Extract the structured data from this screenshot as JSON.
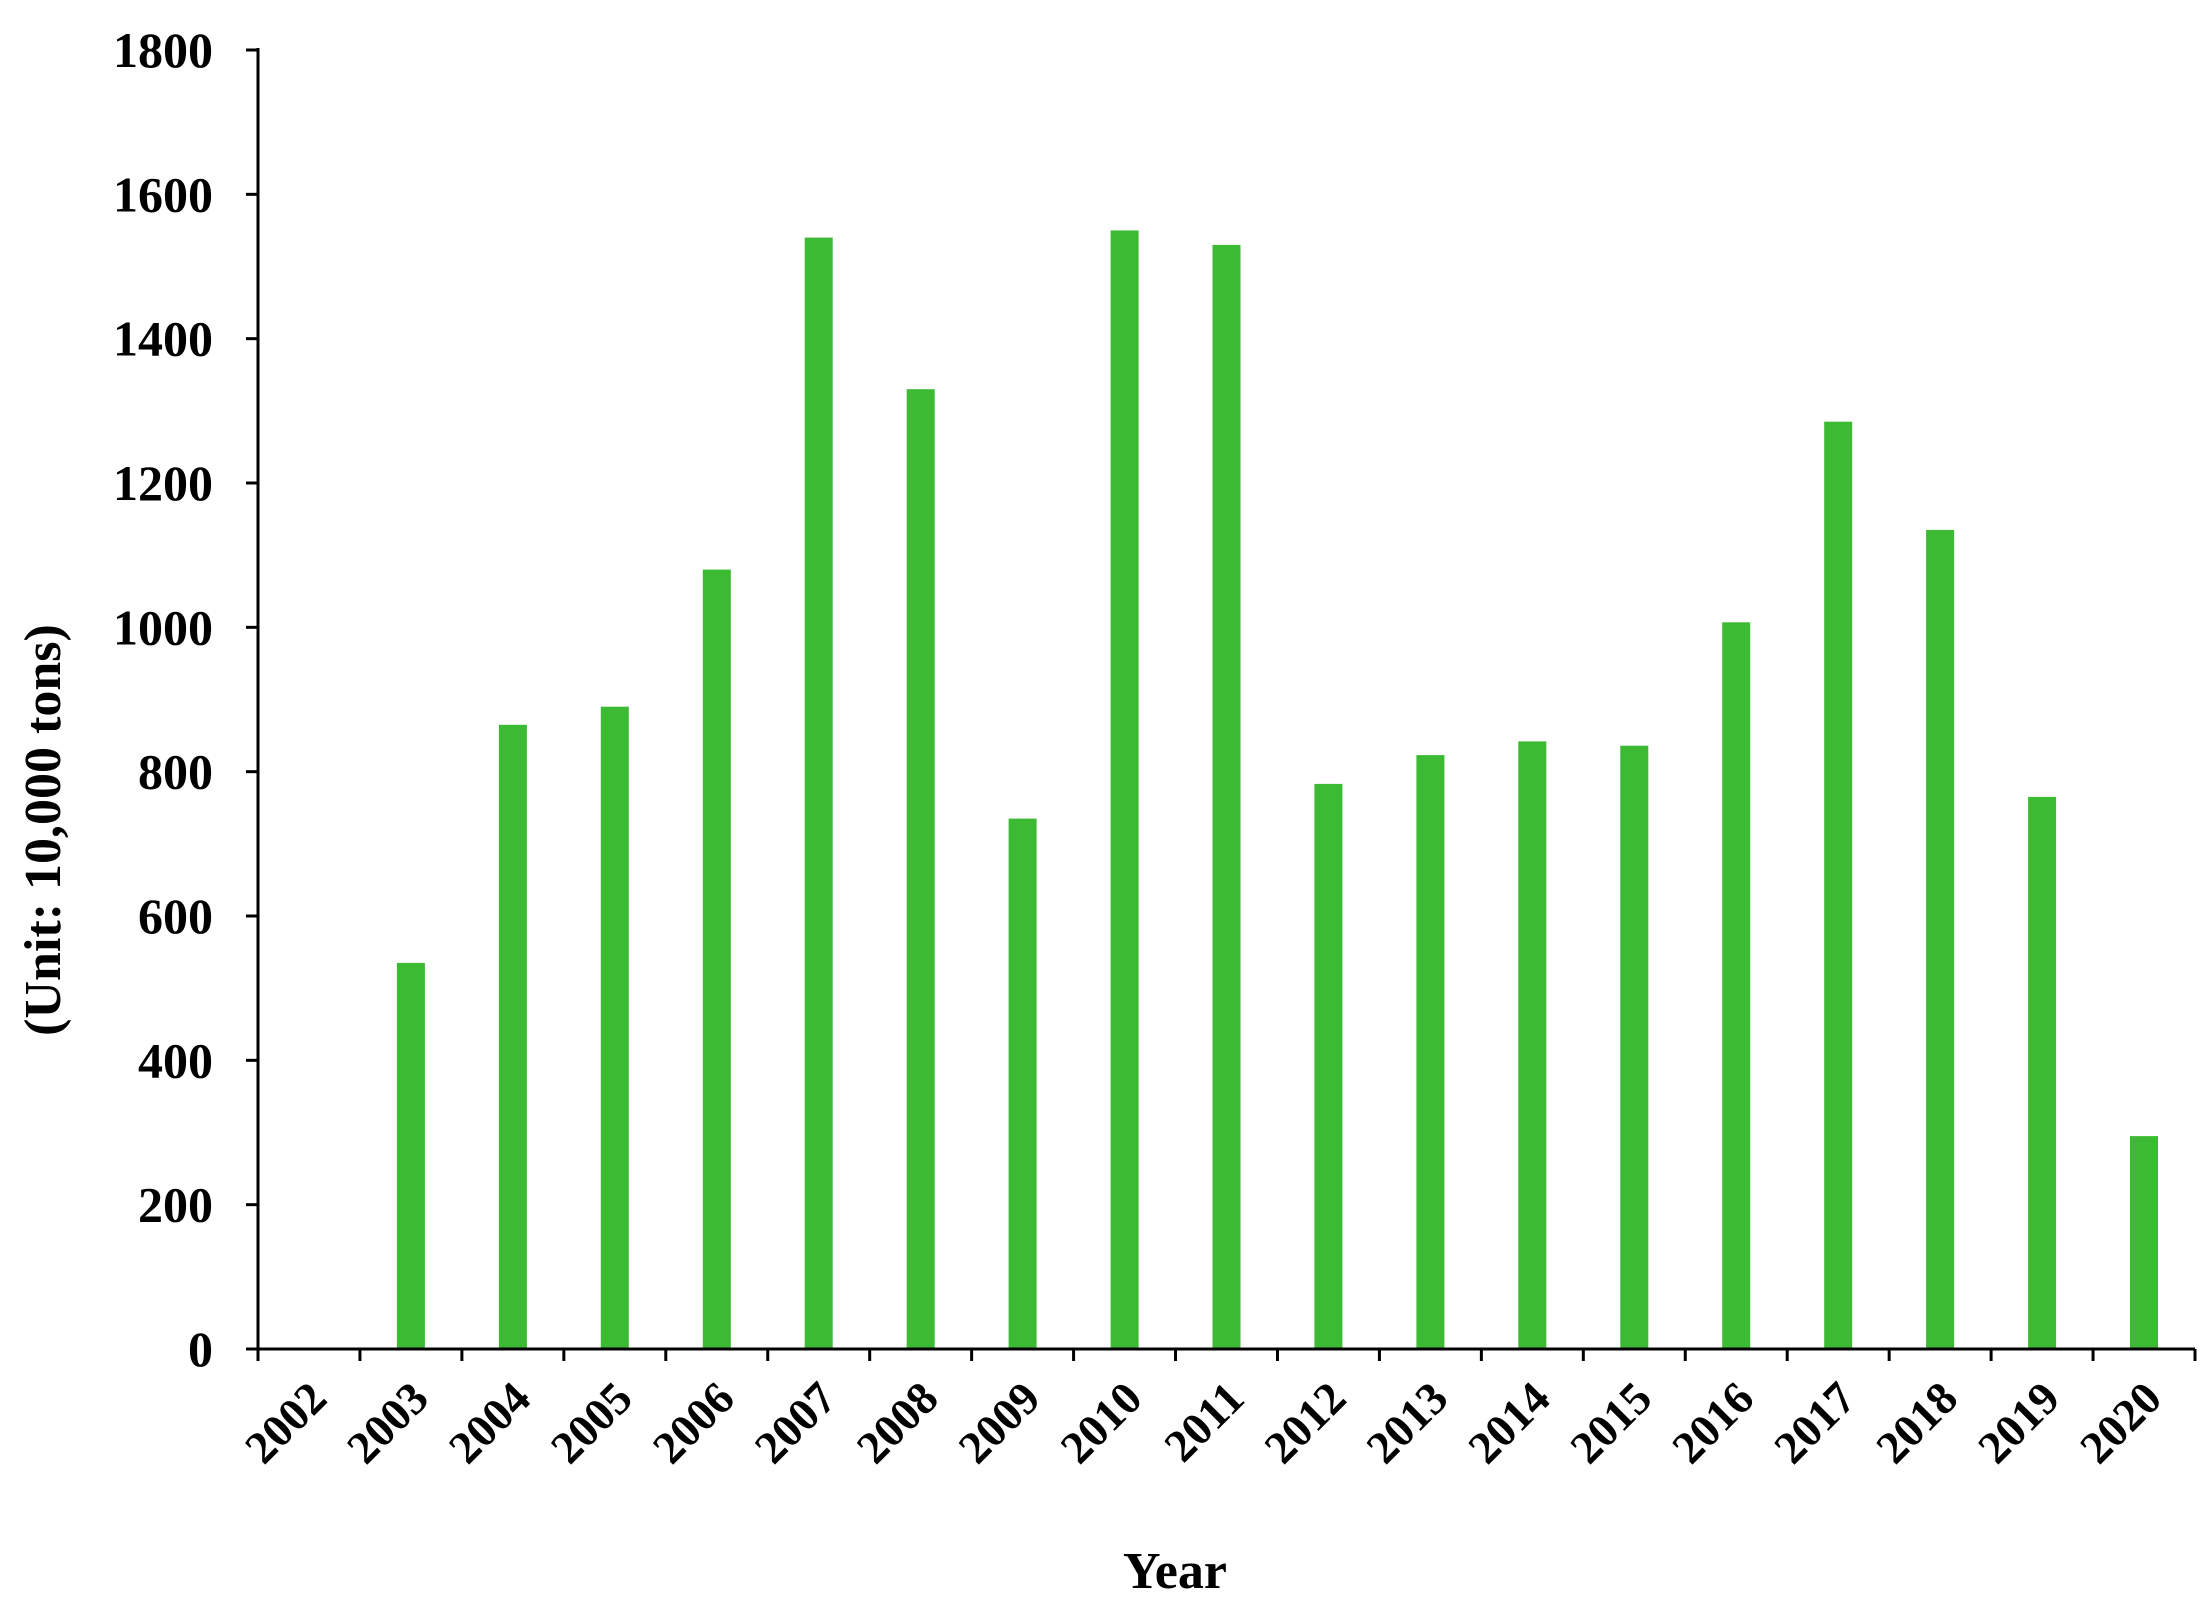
{
  "chart_data": {
    "type": "bar",
    "title": "",
    "xlabel": "Year",
    "ylabel": "(Unit: 10,000 tons)",
    "ylim": [
      0,
      1800
    ],
    "yticks": [
      "0",
      "200",
      "400",
      "600",
      "800",
      "1000",
      "1200",
      "1400",
      "1600",
      "1800"
    ],
    "grid": false,
    "legend": "none",
    "categories": [
      "2002",
      "2003",
      "2004",
      "2005",
      "2006",
      "2007",
      "2008",
      "2009",
      "2010",
      "2011",
      "2012",
      "2013",
      "2014",
      "2015",
      "2016",
      "2017",
      "2018",
      "2019",
      "2020"
    ],
    "series": [
      {
        "color": "#3dba33",
        "values": [
          0,
          535,
          865,
          890,
          1080,
          1540,
          1330,
          735,
          1550,
          1530,
          783,
          823,
          842,
          836,
          1007,
          1285,
          1135,
          765,
          295
        ]
      }
    ]
  }
}
